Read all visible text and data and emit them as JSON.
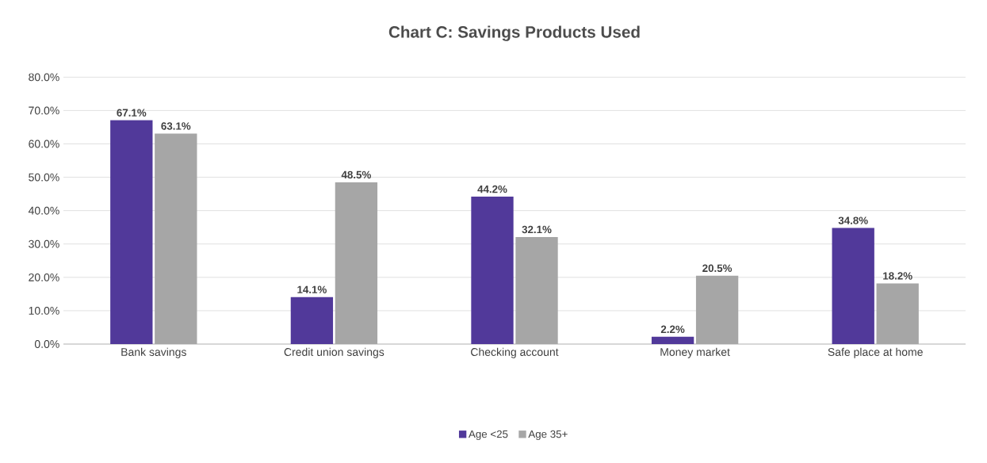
{
  "chart_data": {
    "type": "bar",
    "title": "Chart C: Savings Products Used",
    "categories": [
      "Bank savings",
      "Credit union savings",
      "Checking account",
      "Money market",
      "Safe place at home"
    ],
    "series": [
      {
        "name": "Age <25",
        "color": "#51399a",
        "values": [
          67.1,
          14.1,
          44.2,
          2.2,
          34.8
        ],
        "value_labels": [
          "67.1%",
          "14.1%",
          "44.2%",
          "2.2%",
          "34.8%"
        ]
      },
      {
        "name": "Age 35+",
        "color": "#a6a6a6",
        "values": [
          63.1,
          48.5,
          32.1,
          20.5,
          18.2
        ],
        "value_labels": [
          "63.1%",
          "48.5%",
          "32.1%",
          "20.5%",
          "18.2%"
        ]
      }
    ],
    "ylim": [
      0,
      80
    ],
    "yticks": [
      {
        "value": 0,
        "label": "0.0%"
      },
      {
        "value": 10,
        "label": "10.0%"
      },
      {
        "value": 20,
        "label": "20.0%"
      },
      {
        "value": 30,
        "label": "30.0%"
      },
      {
        "value": 40,
        "label": "40.0%"
      },
      {
        "value": 50,
        "label": "50.0%"
      },
      {
        "value": 60,
        "label": "60.0%"
      },
      {
        "value": 70,
        "label": "70.0%"
      },
      {
        "value": 80,
        "label": "80.0%"
      }
    ],
    "grid": "y",
    "legend": "bottom"
  }
}
